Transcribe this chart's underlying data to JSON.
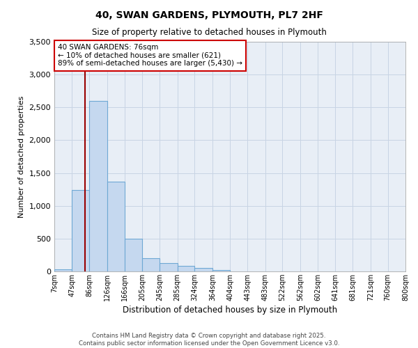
{
  "title": "40, SWAN GARDENS, PLYMOUTH, PL7 2HF",
  "subtitle": "Size of property relative to detached houses in Plymouth",
  "xlabel": "Distribution of detached houses by size in Plymouth",
  "ylabel": "Number of detached properties",
  "bin_labels": [
    "7sqm",
    "47sqm",
    "86sqm",
    "126sqm",
    "166sqm",
    "205sqm",
    "245sqm",
    "285sqm",
    "324sqm",
    "364sqm",
    "404sqm",
    "443sqm",
    "483sqm",
    "522sqm",
    "562sqm",
    "602sqm",
    "641sqm",
    "681sqm",
    "721sqm",
    "760sqm",
    "800sqm"
  ],
  "bin_edges": [
    7,
    47,
    86,
    126,
    166,
    205,
    245,
    285,
    324,
    364,
    404,
    443,
    483,
    522,
    562,
    602,
    641,
    681,
    721,
    760,
    800
  ],
  "bar_heights": [
    30,
    1240,
    2600,
    1370,
    500,
    200,
    130,
    90,
    55,
    20,
    0,
    0,
    0,
    0,
    0,
    0,
    0,
    0,
    0,
    0
  ],
  "bar_color": "#c5d8ef",
  "bar_edge_color": "#6ea8d4",
  "grid_color": "#c8d4e4",
  "background_color": "#e8eef6",
  "vline_x": 76,
  "vline_color": "#990000",
  "annotation_box_text": "40 SWAN GARDENS: 76sqm\n← 10% of detached houses are smaller (621)\n89% of semi-detached houses are larger (5,430) →",
  "annotation_box_color": "#cc0000",
  "footer_line1": "Contains HM Land Registry data © Crown copyright and database right 2025.",
  "footer_line2": "Contains public sector information licensed under the Open Government Licence v3.0.",
  "ylim": [
    0,
    3500
  ],
  "yticks": [
    0,
    500,
    1000,
    1500,
    2000,
    2500,
    3000,
    3500
  ]
}
